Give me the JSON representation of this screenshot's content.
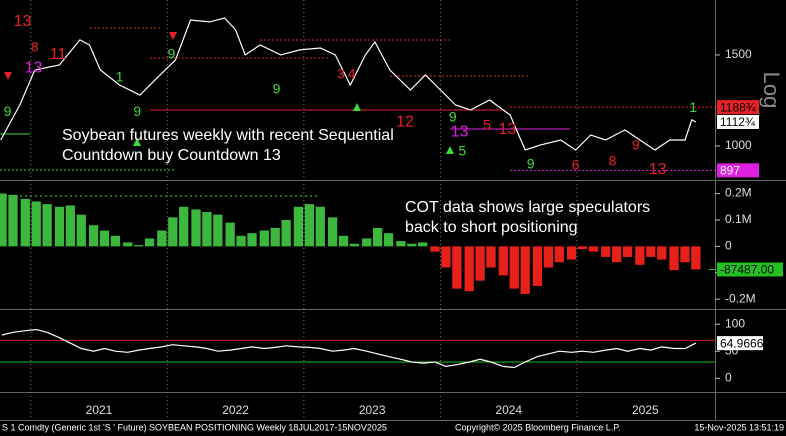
{
  "x_axis": {
    "xlim": [
      2020.775,
      2026.01
    ],
    "xticks": [
      2021,
      2022,
      2023,
      2024,
      2025
    ],
    "year_labels": [
      "2021",
      "2022",
      "2023",
      "2024",
      "2025"
    ]
  },
  "chart_data": [
    {
      "type": "line",
      "log_scale": true,
      "scale_label": "Log",
      "annotation": [
        "Soybean futures weekly with recent Sequential",
        "Countdown buy Countdown 13"
      ],
      "color": "#ffffff",
      "x": [
        2020.78,
        2020.92,
        2021.03,
        2021.21,
        2021.36,
        2021.43,
        2021.51,
        2021.65,
        2021.8,
        2021.91,
        2022.06,
        2022.17,
        2022.31,
        2022.42,
        2022.5,
        2022.57,
        2022.68,
        2022.83,
        2022.97,
        2023.12,
        2023.23,
        2023.34,
        2023.45,
        2023.52,
        2023.63,
        2023.78,
        2023.89,
        2024.0,
        2024.11,
        2024.22,
        2024.36,
        2024.51,
        2024.62,
        2024.73,
        2024.88,
        2024.99,
        2025.1,
        2025.21,
        2025.35,
        2025.46,
        2025.57,
        2025.68,
        2025.79,
        2025.84,
        2025.87
      ],
      "values": [
        1027,
        1200,
        1403,
        1434,
        1604,
        1568,
        1403,
        1312,
        1255,
        1342,
        1467,
        1753,
        1738,
        1768,
        1677,
        1500,
        1568,
        1500,
        1534,
        1547,
        1500,
        1312,
        1500,
        1589,
        1403,
        1283,
        1372,
        1283,
        1200,
        1174,
        1227,
        1148,
        982,
        1004,
        1027,
        982,
        1050,
        1027,
        1074,
        1027,
        982,
        1027,
        1027,
        1123,
        1112.75
      ],
      "ylim": [
        867,
        1916
      ],
      "yticks": [
        1000,
        1500
      ],
      "price_labels": [
        {
          "value": 1188.75,
          "label": "1188¾",
          "color": "#e8202a",
          "text_color": "#000000"
        },
        {
          "value": 1112.75,
          "label": "1112¾",
          "color": "#ffffff",
          "text_color": "#000000"
        },
        {
          "value": 897,
          "label": "897",
          "color": "#e020e0",
          "text_color": "#ffffff"
        }
      ],
      "sequential": [
        {
          "label": "13",
          "x": 2020.94,
          "price": 1737,
          "color": "#e8202a"
        },
        {
          "label": "13",
          "x": 2021.02,
          "price": 1415,
          "color": "#e020e0"
        },
        {
          "label": "9",
          "x": 2020.83,
          "price": 1163,
          "color": "#3cdc3c"
        },
        {
          "label": "8",
          "x": 2021.03,
          "price": 1548,
          "color": "#e8202a"
        },
        {
          "label": "11",
          "x": 2021.2,
          "price": 1500,
          "color": "#e8202a"
        },
        {
          "label": "1",
          "x": 2021.65,
          "price": 1354,
          "color": "#3cdc3c"
        },
        {
          "label": "9",
          "x": 2021.78,
          "price": 1163,
          "color": "#3cdc3c"
        },
        {
          "label": "9",
          "x": 2022.03,
          "price": 1500,
          "color": "#3cdc3c"
        },
        {
          "label": "9",
          "x": 2022.8,
          "price": 1283,
          "color": "#3cdc3c"
        },
        {
          "label": "3",
          "x": 2023.27,
          "price": 1372,
          "color": "#e8202a"
        },
        {
          "label": "4",
          "x": 2023.35,
          "price": 1372,
          "color": "#e8202a"
        },
        {
          "label": "12",
          "x": 2023.74,
          "price": 1112,
          "color": "#e8202a"
        },
        {
          "label": "9",
          "x": 2024.09,
          "price": 1133,
          "color": "#3cdc3c"
        },
        {
          "label": "13",
          "x": 2024.14,
          "price": 1064,
          "color": "#e020e0"
        },
        {
          "label": "5",
          "x": 2024.16,
          "price": 974,
          "color": "#3cdc3c"
        },
        {
          "label": "5",
          "x": 2024.34,
          "price": 1093,
          "color": "#e8202a"
        },
        {
          "label": "13",
          "x": 2024.49,
          "price": 1074,
          "color": "#e8202a"
        },
        {
          "label": "9",
          "x": 2024.66,
          "price": 919,
          "color": "#3cdc3c"
        },
        {
          "label": "6",
          "x": 2024.99,
          "price": 915,
          "color": "#e8202a"
        },
        {
          "label": "8",
          "x": 2025.26,
          "price": 931,
          "color": "#e8202a"
        },
        {
          "label": "9",
          "x": 2025.43,
          "price": 1000,
          "color": "#e8202a"
        },
        {
          "label": "13",
          "x": 2025.59,
          "price": 899,
          "color": "#e8202a"
        },
        {
          "label": "1",
          "x": 2025.85,
          "price": 1184,
          "color": "#3cdc3c"
        }
      ]
    },
    {
      "type": "bar",
      "annotation": [
        "COT data shows large speculators",
        "back to short positioning"
      ],
      "pos_color": "#3cb83c",
      "neg_color": "#e8201a",
      "x": [
        2020.79,
        2020.87,
        2020.96,
        2021.04,
        2021.12,
        2021.21,
        2021.29,
        2021.37,
        2021.46,
        2021.54,
        2021.62,
        2021.71,
        2021.79,
        2021.87,
        2021.96,
        2022.04,
        2022.12,
        2022.21,
        2022.29,
        2022.37,
        2022.46,
        2022.54,
        2022.62,
        2022.71,
        2022.79,
        2022.87,
        2022.96,
        2023.04,
        2023.12,
        2023.21,
        2023.29,
        2023.37,
        2023.46,
        2023.54,
        2023.62,
        2023.71,
        2023.79,
        2023.87,
        2023.96,
        2024.04,
        2024.12,
        2024.21,
        2024.29,
        2024.37,
        2024.46,
        2024.54,
        2024.62,
        2024.71,
        2024.79,
        2024.87,
        2024.96,
        2025.04,
        2025.12,
        2025.21,
        2025.29,
        2025.37,
        2025.46,
        2025.54,
        2025.62,
        2025.71,
        2025.79,
        2025.87
      ],
      "values": [
        200000,
        195000,
        180000,
        170000,
        160000,
        150000,
        155000,
        120000,
        80000,
        60000,
        40000,
        15000,
        5000,
        30000,
        60000,
        110000,
        150000,
        140000,
        130000,
        120000,
        90000,
        40000,
        50000,
        60000,
        70000,
        100000,
        150000,
        160000,
        150000,
        110000,
        40000,
        10000,
        30000,
        70000,
        50000,
        20000,
        10000,
        15000,
        -20000,
        -80000,
        -160000,
        -170000,
        -130000,
        -80000,
        -110000,
        -160000,
        -180000,
        -150000,
        -80000,
        -60000,
        -50000,
        -10000,
        -20000,
        -40000,
        -60000,
        -40000,
        -70000,
        -40000,
        -50000,
        -90000,
        -60000,
        -87487
      ],
      "last_label": {
        "value": -87487,
        "label": "-87487.00",
        "color": "#22c022"
      },
      "ylim": [
        -222000,
        240000
      ],
      "yticks": [
        {
          "value": 200000,
          "label": "0.2M"
        },
        {
          "value": 100000,
          "label": "0.1M"
        },
        0,
        {
          "value": -100000,
          "label": "-0.1M"
        },
        {
          "value": -200000,
          "label": "-0.2M"
        }
      ]
    },
    {
      "type": "line",
      "color": "#ffffff",
      "x": [
        2020.79,
        2020.87,
        2020.96,
        2021.04,
        2021.12,
        2021.21,
        2021.29,
        2021.37,
        2021.46,
        2021.54,
        2021.62,
        2021.71,
        2021.79,
        2021.87,
        2021.96,
        2022.04,
        2022.12,
        2022.21,
        2022.29,
        2022.37,
        2022.46,
        2022.54,
        2022.62,
        2022.71,
        2022.79,
        2022.87,
        2022.96,
        2023.04,
        2023.12,
        2023.21,
        2023.29,
        2023.37,
        2023.46,
        2023.54,
        2023.62,
        2023.71,
        2023.79,
        2023.87,
        2023.96,
        2024.04,
        2024.12,
        2024.21,
        2024.29,
        2024.37,
        2024.46,
        2024.54,
        2024.62,
        2024.71,
        2024.79,
        2024.87,
        2024.96,
        2025.04,
        2025.12,
        2025.21,
        2025.29,
        2025.37,
        2025.46,
        2025.54,
        2025.62,
        2025.71,
        2025.79,
        2025.87
      ],
      "values": [
        80,
        85,
        88,
        90,
        85,
        75,
        65,
        55,
        50,
        55,
        50,
        48,
        52,
        55,
        58,
        62,
        60,
        58,
        55,
        50,
        52,
        55,
        58,
        55,
        57,
        60,
        58,
        57,
        55,
        50,
        52,
        55,
        50,
        45,
        40,
        35,
        30,
        28,
        30,
        22,
        25,
        30,
        35,
        30,
        22,
        20,
        30,
        40,
        45,
        50,
        48,
        50,
        48,
        52,
        55,
        50,
        55,
        52,
        58,
        55,
        55,
        64.9666
      ],
      "last_color": "#ffffff",
      "levels": [
        {
          "value": 70,
          "color": "#d02020"
        },
        {
          "value": 30,
          "color": "#20c020"
        }
      ],
      "ylim": [
        -18,
        117
      ],
      "yticks": [
        100,
        50,
        0
      ]
    }
  ],
  "footer": {
    "left": "S 1 Comdty (Generic 1st 'S ' Future) SOYBEAN POSITIONING Weekly 18JUL2017-15NOV2025",
    "center": "Copyright© 2025 Bloomberg Finance L.P.",
    "right": "15-Nov-2025 13:51:19"
  }
}
